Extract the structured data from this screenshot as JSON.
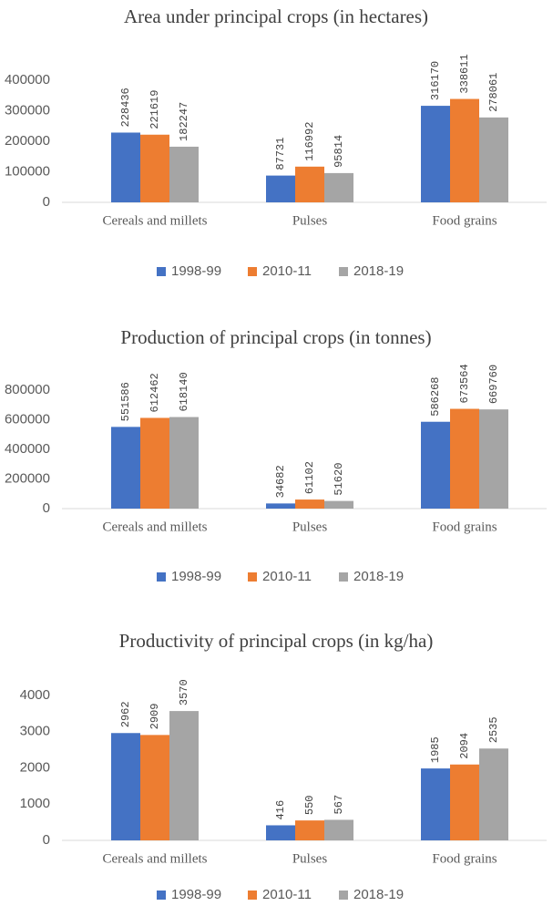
{
  "chart_data": [
    {
      "type": "bar",
      "title": "Area under principal  crops (in hectares)",
      "categories": [
        "Cereals and millets",
        "Pulses",
        "Food grains"
      ],
      "series": [
        {
          "name": "1998-99",
          "color": "#4472c4",
          "values": [
            228436,
            87731,
            316170
          ]
        },
        {
          "name": "2010-11",
          "color": "#ed7d31",
          "values": [
            221619,
            116992,
            338611
          ]
        },
        {
          "name": "2018-19",
          "color": "#a5a5a5",
          "values": [
            182247,
            95814,
            278061
          ]
        }
      ],
      "ylim": [
        0,
        400000
      ],
      "yticks": [
        0,
        100000,
        200000,
        300000,
        400000
      ],
      "grid": false,
      "legend": "bottom"
    },
    {
      "type": "bar",
      "title": "Production of principal  crops (in tonnes)",
      "categories": [
        "Cereals and millets",
        "Pulses",
        "Food grains"
      ],
      "series": [
        {
          "name": "1998-99",
          "color": "#4472c4",
          "values": [
            551586,
            34682,
            586268
          ]
        },
        {
          "name": "2010-11",
          "color": "#ed7d31",
          "values": [
            612462,
            61102,
            673564
          ]
        },
        {
          "name": "2018-19",
          "color": "#a5a5a5",
          "values": [
            618140,
            51620,
            669760
          ]
        }
      ],
      "ylim": [
        0,
        800000
      ],
      "yticks": [
        0,
        200000,
        400000,
        600000,
        800000
      ],
      "grid": false,
      "legend": "bottom"
    },
    {
      "type": "bar",
      "title": "Productivity of principal  crops (in kg/ha)",
      "categories": [
        "Cereals and millets",
        "Pulses",
        "Food grains"
      ],
      "series": [
        {
          "name": "1998-99",
          "color": "#4472c4",
          "values": [
            2962,
            416,
            1985
          ]
        },
        {
          "name": "2010-11",
          "color": "#ed7d31",
          "values": [
            2909,
            550,
            2094
          ]
        },
        {
          "name": "2018-19",
          "color": "#a5a5a5",
          "values": [
            3570,
            567,
            2535
          ]
        }
      ],
      "ylim": [
        0,
        4000
      ],
      "yticks": [
        0,
        1000,
        2000,
        3000,
        4000
      ],
      "grid": false,
      "legend": "bottom"
    }
  ]
}
